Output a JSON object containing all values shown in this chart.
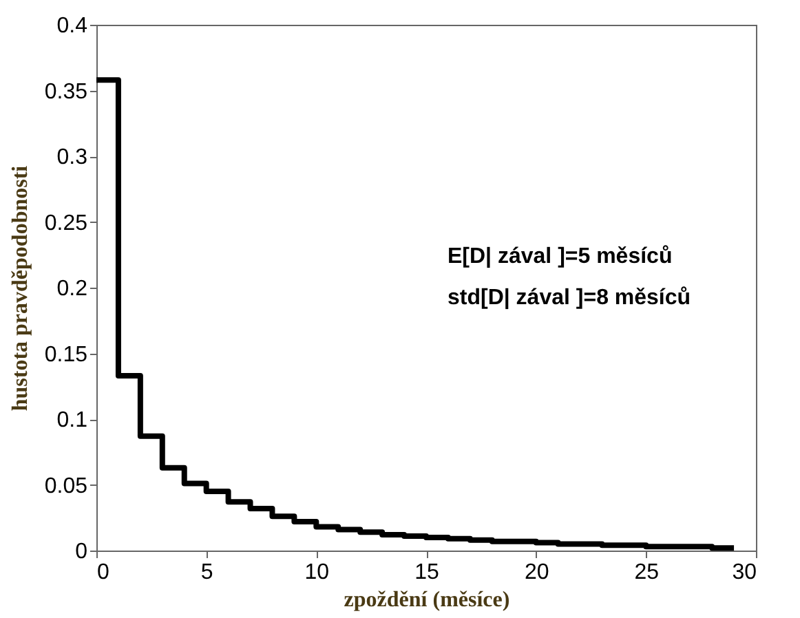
{
  "chart_data": {
    "type": "histogram",
    "xlabel": "zpoždění (měsíce)",
    "ylabel": "hustota pravděpodobnosti",
    "bins": [
      0,
      1,
      2,
      3,
      4,
      5,
      6,
      7,
      8,
      9,
      10,
      11,
      12,
      13,
      14,
      15,
      16,
      17,
      18,
      19,
      20,
      21,
      22,
      23,
      24,
      25,
      26,
      27,
      28,
      29
    ],
    "values": [
      0.358,
      0.133,
      0.087,
      0.063,
      0.051,
      0.045,
      0.037,
      0.032,
      0.026,
      0.022,
      0.018,
      0.016,
      0.014,
      0.012,
      0.011,
      0.01,
      0.009,
      0.008,
      0.007,
      0.007,
      0.006,
      0.005,
      0.005,
      0.004,
      0.004,
      0.003,
      0.003,
      0.003,
      0.002
    ],
    "color": "#000000",
    "xlim": [
      0,
      30
    ],
    "xticks": [
      0,
      5,
      10,
      15,
      20,
      25,
      30
    ],
    "ylim": [
      0,
      0.4
    ],
    "yticks": [
      0,
      0.05,
      0.1,
      0.15,
      0.2,
      0.25,
      0.3,
      0.35,
      0.4
    ],
    "grid": false,
    "annotations": [
      "E[D| zával ]=5 měsíců",
      "std[D| zával ]=8 měsíců"
    ]
  }
}
